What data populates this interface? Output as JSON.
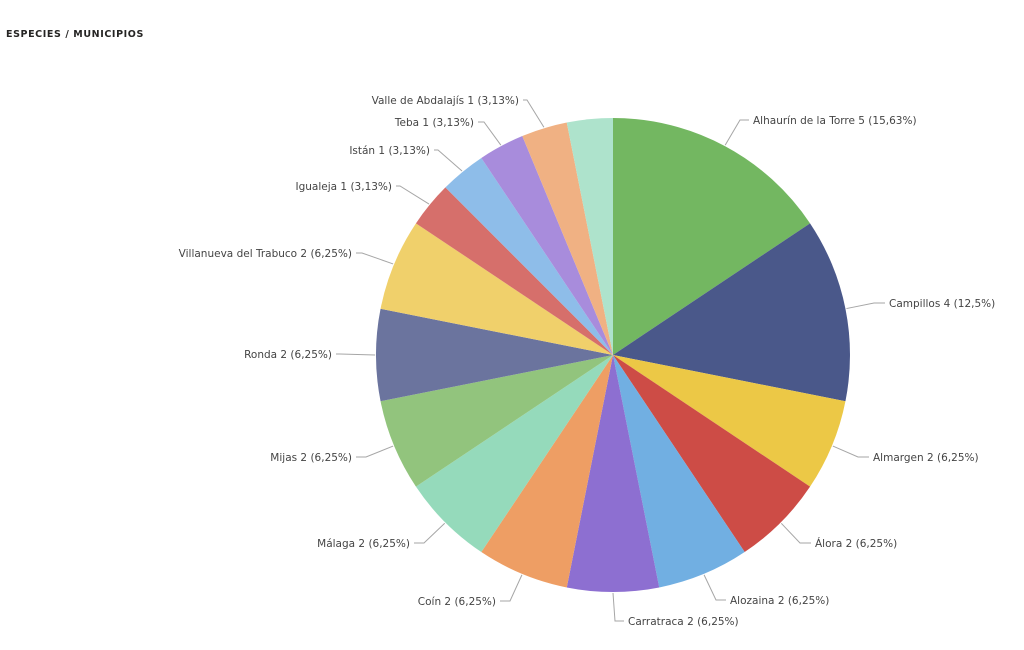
{
  "header": {
    "title": "ESPECIES / MUNICIPIOS"
  },
  "chart_data": {
    "type": "pie",
    "title": "ESPECIES / MUNICIPIOS",
    "labels_position": "outside",
    "start_angle_deg": 0,
    "direction": "clockwise",
    "slices": [
      {
        "label": "Alhaurín de la Torre",
        "value": 5,
        "percent": "15,63%",
        "text": "Alhaurín de la Torre 5 (15,63%)",
        "color": "#73b761"
      },
      {
        "label": "Campillos",
        "value": 4,
        "percent": "12,5%",
        "text": "Campillos 4 (12,5%)",
        "color": "#4a588a"
      },
      {
        "label": "Almargen",
        "value": 2,
        "percent": "6,25%",
        "text": "Almargen 2 (6,25%)",
        "color": "#ecc846"
      },
      {
        "label": "Álora",
        "value": 2,
        "percent": "6,25%",
        "text": "Álora 2 (6,25%)",
        "color": "#cd4c46"
      },
      {
        "label": "Alozaina",
        "value": 2,
        "percent": "6,25%",
        "text": "Alozaina 2 (6,25%)",
        "color": "#71afe2"
      },
      {
        "label": "Carratraca",
        "value": 2,
        "percent": "6,25%",
        "text": "Carratraca 2 (6,25%)",
        "color": "#8d6fd1"
      },
      {
        "label": "Coín",
        "value": 2,
        "percent": "6,25%",
        "text": "Coín 2 (6,25%)",
        "color": "#ee9e64"
      },
      {
        "label": "Málaga",
        "value": 2,
        "percent": "6,25%",
        "text": "Málaga 2 (6,25%)",
        "color": "#95dabb"
      },
      {
        "label": "Mijas",
        "value": 2,
        "percent": "6,25%",
        "text": "Mijas 2 (6,25%)",
        "color": "#92c47d"
      },
      {
        "label": "Ronda",
        "value": 2,
        "percent": "6,25%",
        "text": "Ronda 2 (6,25%)",
        "color": "#6b749e"
      },
      {
        "label": "Villanueva del Trabuco",
        "value": 2,
        "percent": "6,25%",
        "text": "Villanueva del Trabuco 2 (6,25%)",
        "color": "#f0d06b"
      },
      {
        "label": "Igualeja",
        "value": 1,
        "percent": "3,13%",
        "text": "Igualeja 1 (3,13%)",
        "color": "#d66f6b"
      },
      {
        "label": "Istán",
        "value": 1,
        "percent": "3,13%",
        "text": "Istán 1 (3,13%)",
        "color": "#8ebde9"
      },
      {
        "label": "Teba",
        "value": 1,
        "percent": "3,13%",
        "text": "Teba 1 (3,13%)",
        "color": "#a88cdc"
      },
      {
        "label": "Valle de Abdalajís",
        "value": 1,
        "percent": "3,13%",
        "text": "Valle de Abdalajís 1 (3,13%)",
        "color": "#f0b183"
      },
      {
        "label": "(unlabeled)",
        "value": 1,
        "percent": "",
        "text": "",
        "color": "#aee3cc"
      }
    ]
  }
}
